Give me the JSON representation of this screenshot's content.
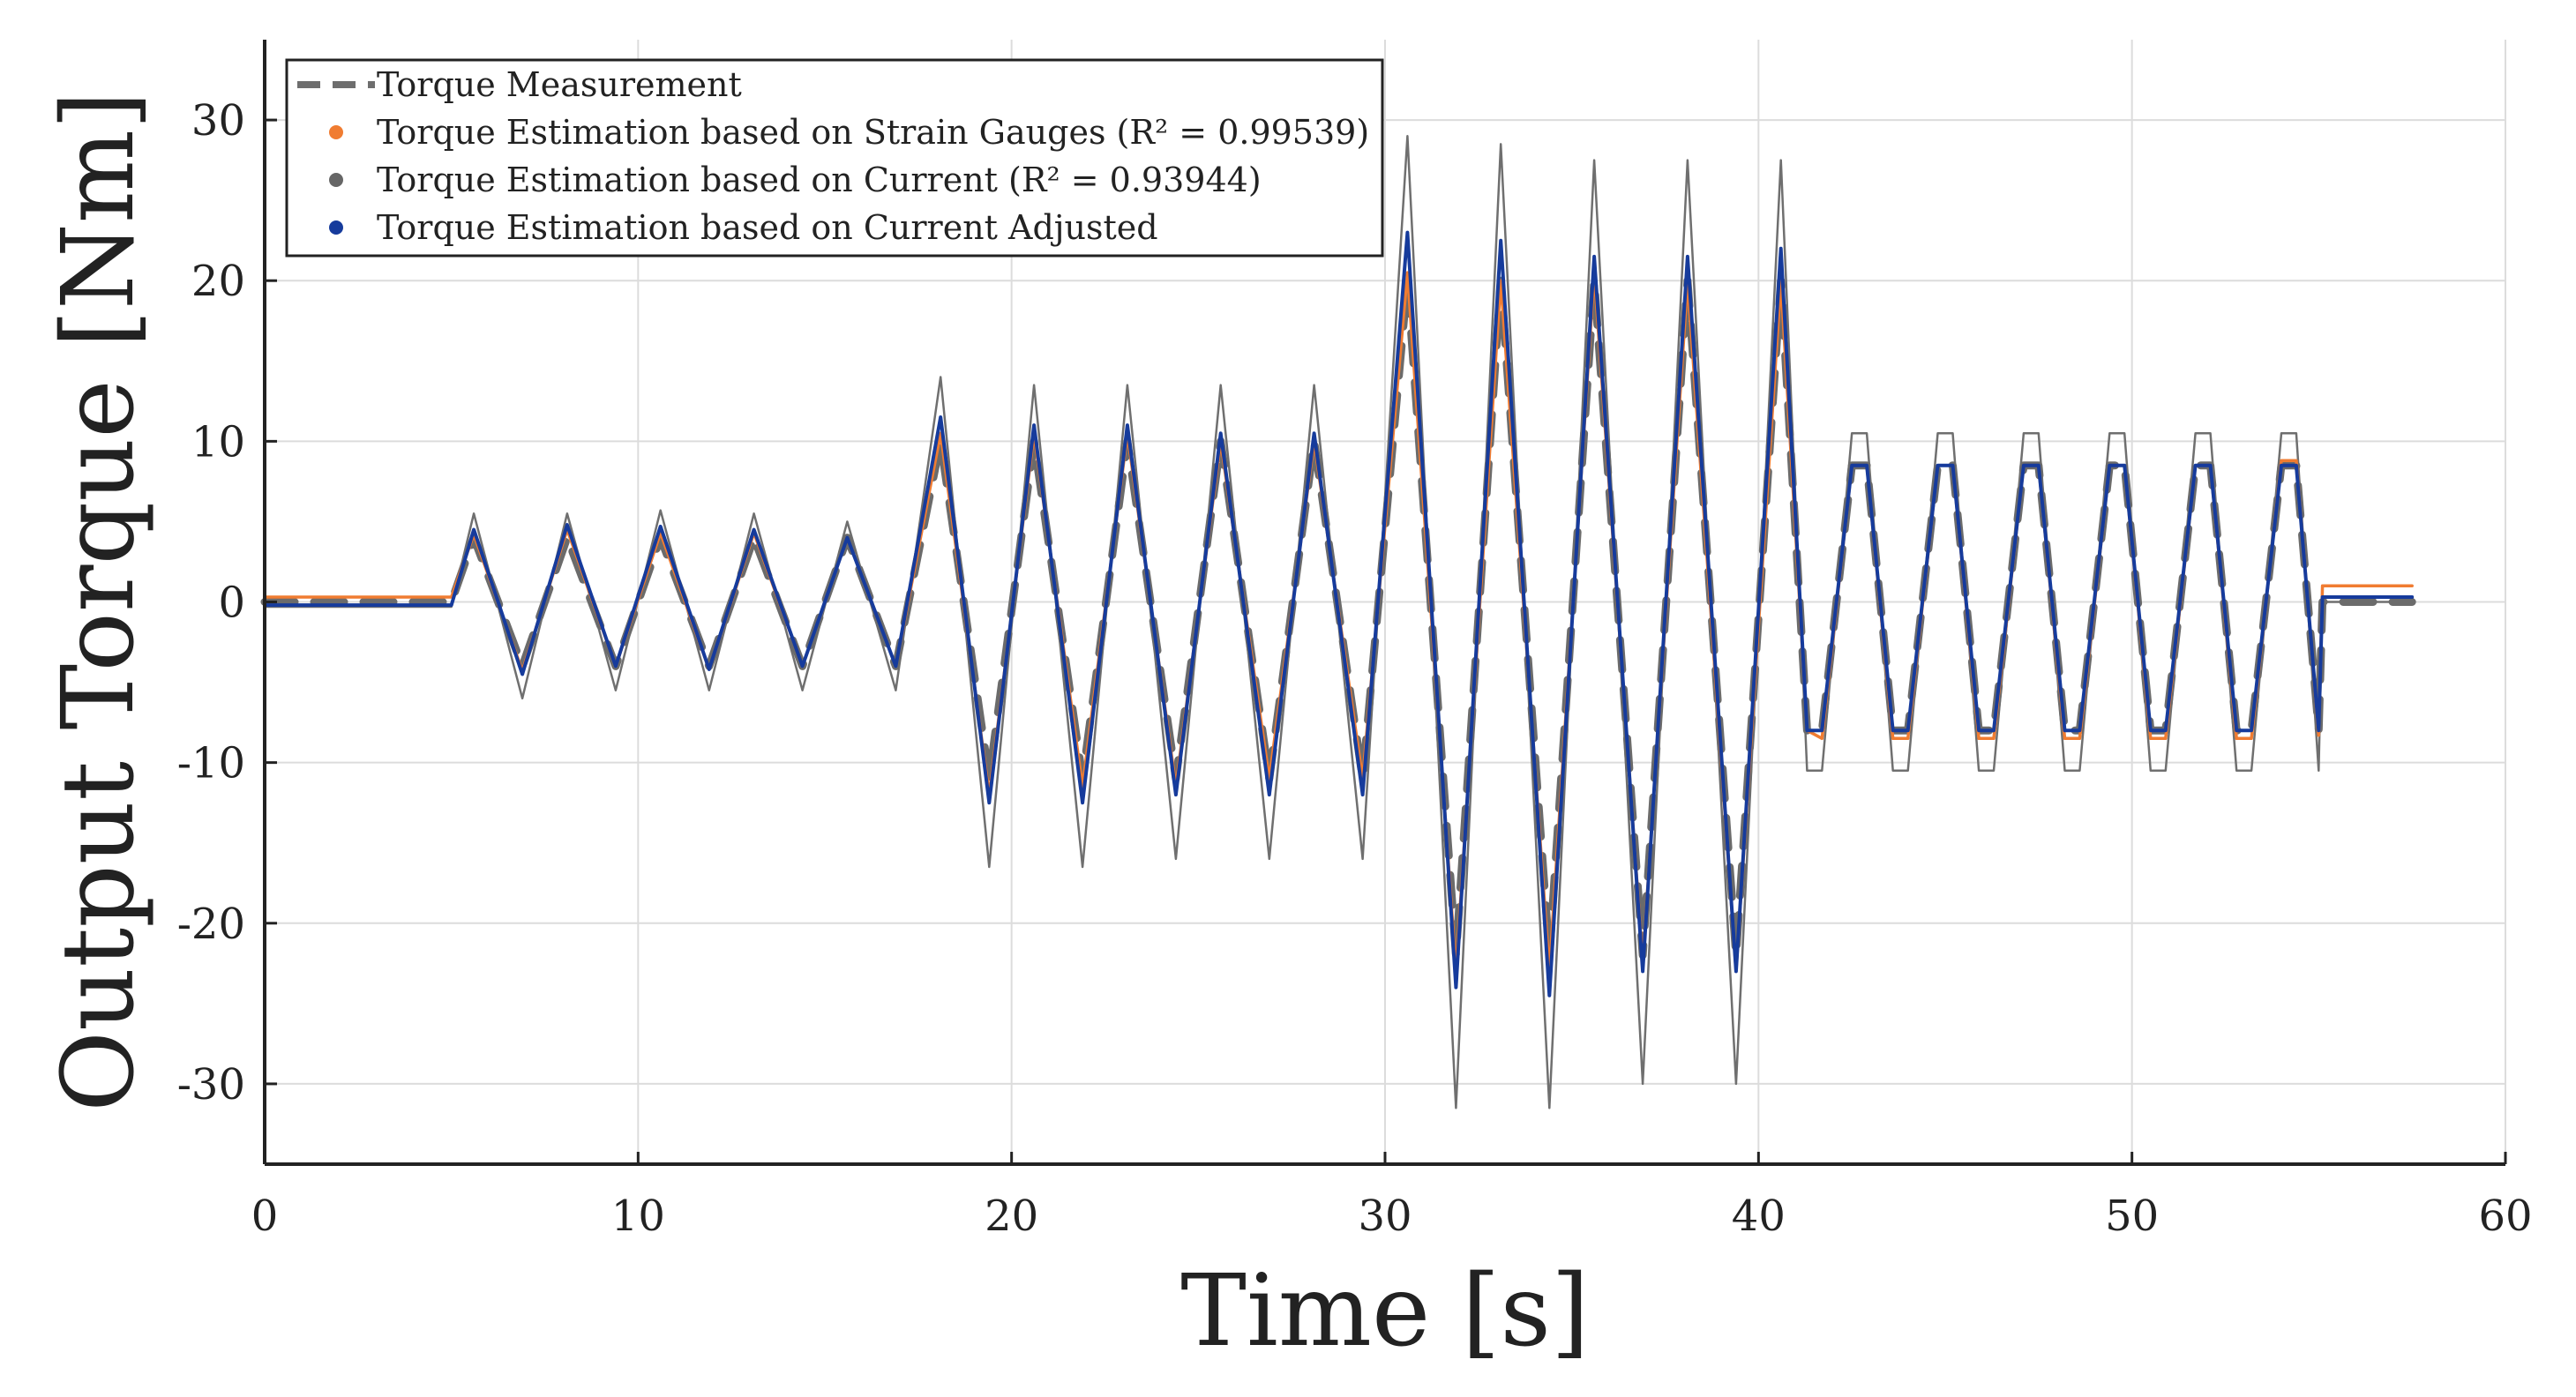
{
  "chart_data": {
    "type": "line",
    "title": "",
    "xlabel": "Time [s]",
    "ylabel": "Output Torque [Nm]",
    "xlim": [
      0,
      60
    ],
    "ylim": [
      -35,
      35
    ],
    "xticks": [
      0,
      10,
      20,
      30,
      40,
      50,
      60
    ],
    "xtick_labels": [
      "0",
      "10",
      "20",
      "30",
      "40",
      "50",
      "60"
    ],
    "yticks": [
      30,
      20,
      10,
      0,
      -10,
      -20,
      -30
    ],
    "ytick_labels": [
      "30",
      "20",
      "10",
      "0",
      "-10",
      "-20",
      "-30"
    ],
    "grid": true,
    "legend_position": "top-left",
    "legend": [
      {
        "label": "Torque Measurement",
        "marker": "dashed-line",
        "color": "#6e6e6e"
      },
      {
        "label": "Torque Estimation based on Strain Gauges (R² = 0.99539)",
        "marker": "dot",
        "color": "#f07c31"
      },
      {
        "label": "Torque Estimation based on Current (R² = 0.93944)",
        "marker": "dot",
        "color": "#666666"
      },
      {
        "label": "Torque Estimation based on Current Adjusted",
        "marker": "dot",
        "color": "#163b9c"
      }
    ],
    "colors": {
      "measurement": "#6b6b6b",
      "strain": "#f07c31",
      "current": "#6f6f6f",
      "adjusted": "#163b9c",
      "grid": "#dcdcdc",
      "axis": "#222222"
    },
    "series": [
      {
        "name": "Torque Measurement",
        "x": [
          0,
          5,
          5.6,
          6.9,
          8.1,
          9.4,
          10.6,
          11.9,
          13.1,
          14.4,
          15.6,
          16.9,
          18.1,
          19.4,
          20.6,
          21.9,
          23.1,
          24.4,
          25.6,
          26.9,
          28.1,
          29.4,
          30.6,
          31.9,
          33.1,
          34.4,
          35.6,
          36.9,
          38.1,
          39.4,
          40.6,
          41.3,
          41.7,
          42.5,
          42.9,
          43.6,
          44.0,
          44.8,
          45.2,
          45.9,
          46.3,
          47.1,
          47.5,
          48.2,
          48.6,
          49.4,
          49.8,
          50.5,
          50.9,
          51.7,
          52.1,
          52.8,
          53.2,
          54.0,
          54.4,
          55.0,
          55.1,
          57.5
        ],
        "values": [
          0,
          0,
          4,
          -4,
          4,
          -4,
          4,
          -4,
          4,
          -4,
          4,
          -4,
          10,
          -11,
          10,
          -11,
          10,
          -11,
          10,
          -11,
          10,
          -11,
          20,
          -22,
          20,
          -22,
          20,
          -22,
          20,
          -22,
          20,
          -8,
          -8,
          8.5,
          8.5,
          -8,
          -8,
          8.5,
          8.5,
          -8,
          -8,
          8.5,
          8.5,
          -8,
          -8,
          8.5,
          8.5,
          -8,
          -8,
          8.5,
          8.5,
          -8,
          -8,
          8.5,
          8.5,
          -8,
          0,
          0
        ]
      },
      {
        "name": "Torque Estimation based on Strain Gauges (R² = 0.99539)",
        "x": [
          0,
          5,
          5.6,
          6.9,
          8.1,
          9.4,
          10.6,
          11.9,
          13.1,
          14.4,
          15.6,
          16.9,
          18.1,
          19.4,
          20.6,
          21.9,
          23.1,
          24.4,
          25.6,
          26.9,
          28.1,
          29.4,
          30.6,
          31.9,
          33.1,
          34.4,
          35.6,
          36.9,
          38.1,
          39.4,
          40.6,
          41.3,
          41.7,
          42.5,
          42.9,
          43.6,
          44.0,
          44.8,
          45.2,
          45.9,
          46.3,
          47.1,
          47.5,
          48.2,
          48.6,
          49.4,
          49.8,
          50.5,
          50.9,
          51.7,
          52.1,
          52.8,
          53.2,
          54.0,
          54.4,
          55.0,
          55.1,
          57.5
        ],
        "values": [
          0.3,
          0.3,
          4.2,
          -4.3,
          4.5,
          -4,
          4.3,
          -4.2,
          4.3,
          -4,
          4,
          -4,
          10.5,
          -12,
          10.5,
          -11.5,
          10.5,
          -11.5,
          10,
          -11,
          10,
          -11,
          20.5,
          -23,
          20,
          -23,
          20.5,
          -22.5,
          20,
          -23,
          20,
          -8,
          -8.5,
          8.5,
          8.5,
          -8.5,
          -8.5,
          8.5,
          8.5,
          -8.5,
          -8.5,
          8.5,
          8.5,
          -8.5,
          -8.5,
          8.5,
          8.5,
          -8.5,
          -8.5,
          8.5,
          8.5,
          -8.5,
          -8.5,
          8.8,
          8.8,
          -8.3,
          1,
          1
        ]
      },
      {
        "name": "Torque Estimation based on Current (R² = 0.93944)",
        "x": [
          0,
          5,
          5.6,
          6.9,
          8.1,
          9.4,
          10.6,
          11.9,
          13.1,
          14.4,
          15.6,
          16.9,
          18.1,
          19.4,
          20.6,
          21.9,
          23.1,
          24.4,
          25.6,
          26.9,
          28.1,
          29.4,
          30.6,
          31.9,
          33.1,
          34.4,
          35.6,
          36.9,
          38.1,
          39.4,
          40.6,
          41.3,
          41.7,
          42.5,
          42.9,
          43.6,
          44.0,
          44.8,
          45.2,
          45.9,
          46.3,
          47.1,
          47.5,
          48.2,
          48.6,
          49.4,
          49.8,
          50.5,
          50.9,
          51.7,
          52.1,
          52.8,
          53.2,
          54.0,
          54.4,
          55.0,
          55.1,
          57.5
        ],
        "values": [
          -0.3,
          -0.3,
          5.5,
          -6,
          5.5,
          -5.5,
          5.7,
          -5.5,
          5.5,
          -5.5,
          5,
          -5.5,
          14,
          -16.5,
          13.5,
          -16.5,
          13.5,
          -16,
          13.5,
          -16,
          13.5,
          -16,
          29,
          -31.5,
          28.5,
          -31.5,
          27.5,
          -30,
          27.5,
          -30,
          27.5,
          -10.5,
          -10.5,
          10.5,
          10.5,
          -10.5,
          -10.5,
          10.5,
          10.5,
          -10.5,
          -10.5,
          10.5,
          10.5,
          -10.5,
          -10.5,
          10.5,
          10.5,
          -10.5,
          -10.5,
          10.5,
          10.5,
          -10.5,
          -10.5,
          10.5,
          10.5,
          -10.5,
          0,
          0
        ]
      },
      {
        "name": "Torque Estimation based on Current Adjusted",
        "x": [
          0,
          5,
          5.6,
          6.9,
          8.1,
          9.4,
          10.6,
          11.9,
          13.1,
          14.4,
          15.6,
          16.9,
          18.1,
          19.4,
          20.6,
          21.9,
          23.1,
          24.4,
          25.6,
          26.9,
          28.1,
          29.4,
          30.6,
          31.9,
          33.1,
          34.4,
          35.6,
          36.9,
          38.1,
          39.4,
          40.6,
          41.3,
          41.7,
          42.5,
          42.9,
          43.6,
          44.0,
          44.8,
          45.2,
          45.9,
          46.3,
          47.1,
          47.5,
          48.2,
          48.6,
          49.4,
          49.8,
          50.5,
          50.9,
          51.7,
          52.1,
          52.8,
          53.2,
          54.0,
          54.4,
          55.0,
          55.1,
          57.5
        ],
        "values": [
          -0.2,
          -0.2,
          4.5,
          -4.5,
          4.8,
          -4,
          4.7,
          -4.2,
          4.5,
          -4,
          4,
          -4,
          11.5,
          -12.5,
          11,
          -12.5,
          11,
          -12,
          10.5,
          -12,
          10.5,
          -12,
          23,
          -24,
          22.5,
          -24.5,
          21.5,
          -23,
          21.5,
          -23,
          22,
          -8,
          -8,
          8.5,
          8.5,
          -8,
          -8,
          8.5,
          8.5,
          -8,
          -8,
          8.5,
          8.5,
          -8,
          -8,
          8.5,
          8.5,
          -8,
          -8,
          8.5,
          8.5,
          -8,
          -8,
          8.5,
          8.5,
          -8,
          0.3,
          0.3
        ]
      }
    ]
  }
}
